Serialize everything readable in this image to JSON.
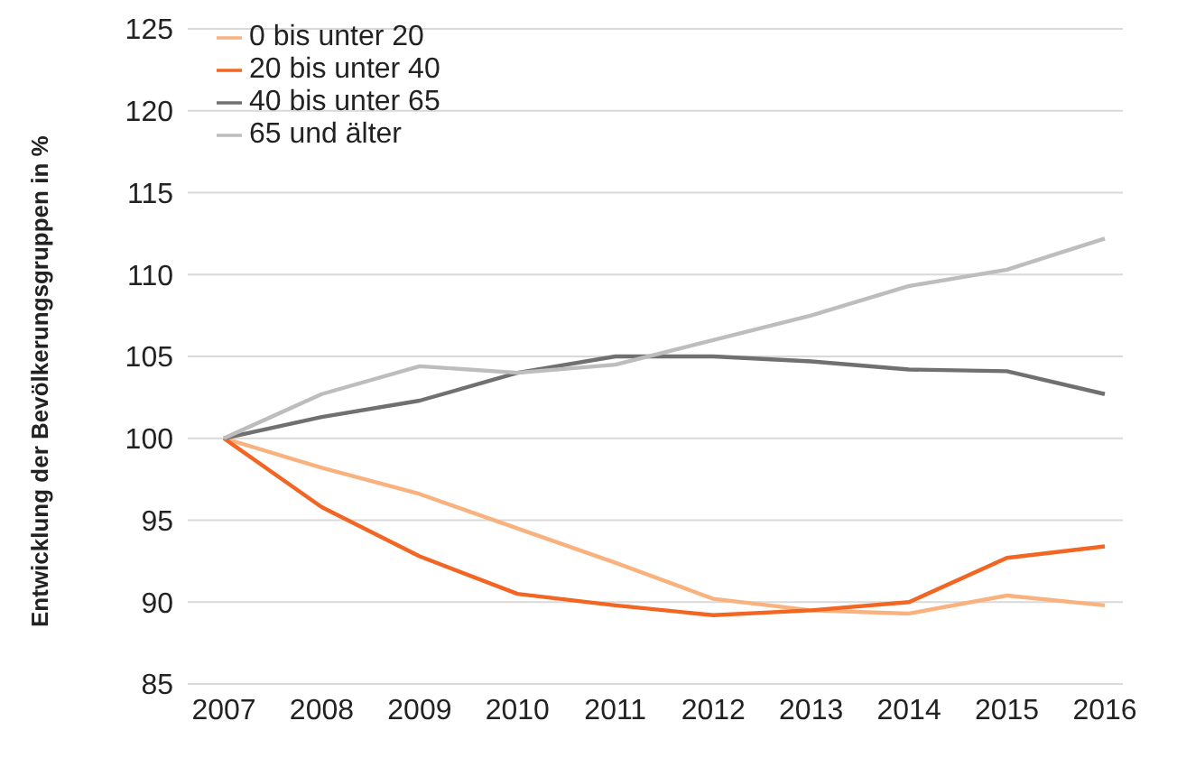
{
  "chart_data": {
    "type": "line",
    "ylabel": "Entwicklung der Bevölkerungsgruppen in %",
    "categories": [
      "2007",
      "2008",
      "2009",
      "2010",
      "2011",
      "2012",
      "2013",
      "2014",
      "2015",
      "2016"
    ],
    "series": [
      {
        "name": "0 bis unter 20",
        "color": "#f9b27e",
        "values": [
          100,
          98.2,
          96.6,
          94.5,
          92.4,
          90.2,
          89.5,
          89.3,
          90.4,
          89.8
        ]
      },
      {
        "name": "20 bis unter 40",
        "color": "#f26522",
        "values": [
          100,
          95.8,
          92.8,
          90.5,
          89.8,
          89.2,
          89.5,
          90.0,
          92.7,
          93.4
        ]
      },
      {
        "name": "40 bis unter 65",
        "color": "#707070",
        "values": [
          100,
          101.3,
          102.3,
          104.0,
          105.0,
          105.0,
          104.7,
          104.2,
          104.1,
          102.7
        ]
      },
      {
        "name": "65 und älter",
        "color": "#bdbdbd",
        "values": [
          100,
          102.7,
          104.4,
          104.0,
          104.5,
          106.0,
          107.5,
          109.3,
          110.3,
          112.2
        ]
      }
    ],
    "ylim": [
      85,
      125
    ],
    "yticks": [
      85,
      90,
      95,
      100,
      105,
      110,
      115,
      120,
      125
    ],
    "grid": "y",
    "legend": "top left",
    "marker": "none",
    "line_style": "solid"
  }
}
